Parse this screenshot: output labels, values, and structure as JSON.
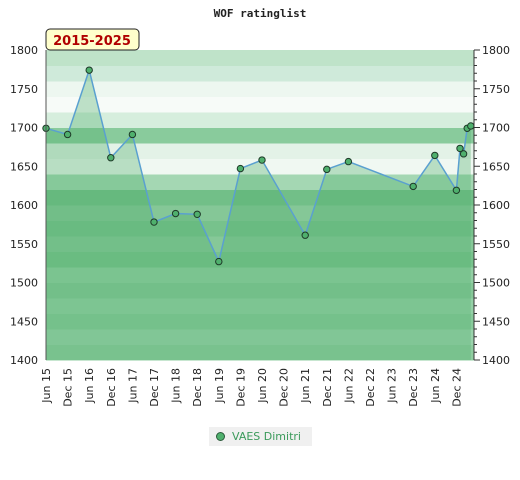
{
  "chart_data": {
    "type": "line",
    "title": "WOF ratinglist",
    "period_label": "2015-2025",
    "ylim": [
      1400,
      1800
    ],
    "y_ticks": [
      1400,
      1450,
      1500,
      1550,
      1600,
      1650,
      1700,
      1750,
      1800
    ],
    "x_tick_labels": [
      "Jun 15",
      "Dec 15",
      "Jun 16",
      "Dec 16",
      "Jun 17",
      "Dec 17",
      "Jun 18",
      "Dec 18",
      "Jun 19",
      "Dec 19",
      "Jun 20",
      "Dec 20",
      "Jun 21",
      "Dec 21",
      "Jun 22",
      "Dec 22",
      "Jun 23",
      "Dec 23",
      "Jun 24",
      "Dec 24"
    ],
    "grid": true,
    "legend_position": "bottom-center",
    "colors": {
      "line": "#5aa0d0",
      "fill": "#4fb06d",
      "marker": "#4fb06d"
    },
    "series": [
      {
        "name": "VAES Dimitri",
        "points": [
          {
            "x": "2015-06",
            "y": 1699
          },
          {
            "x": "2015-12",
            "y": 1691
          },
          {
            "x": "2016-06",
            "y": 1774
          },
          {
            "x": "2016-12",
            "y": 1661
          },
          {
            "x": "2017-06",
            "y": 1691
          },
          {
            "x": "2017-12",
            "y": 1578
          },
          {
            "x": "2018-06",
            "y": 1589
          },
          {
            "x": "2018-12",
            "y": 1588
          },
          {
            "x": "2019-06",
            "y": 1527
          },
          {
            "x": "2019-12",
            "y": 1647
          },
          {
            "x": "2020-06",
            "y": 1658
          },
          {
            "x": "2021-06",
            "y": 1561
          },
          {
            "x": "2021-12",
            "y": 1646
          },
          {
            "x": "2022-06",
            "y": 1656
          },
          {
            "x": "2023-12",
            "y": 1624
          },
          {
            "x": "2024-06",
            "y": 1664
          },
          {
            "x": "2024-12",
            "y": 1619
          },
          {
            "x": "2025-01",
            "y": 1673
          },
          {
            "x": "2025-02",
            "y": 1666
          },
          {
            "x": "2025-03",
            "y": 1699
          },
          {
            "x": "2025-04",
            "y": 1702
          }
        ]
      }
    ]
  }
}
